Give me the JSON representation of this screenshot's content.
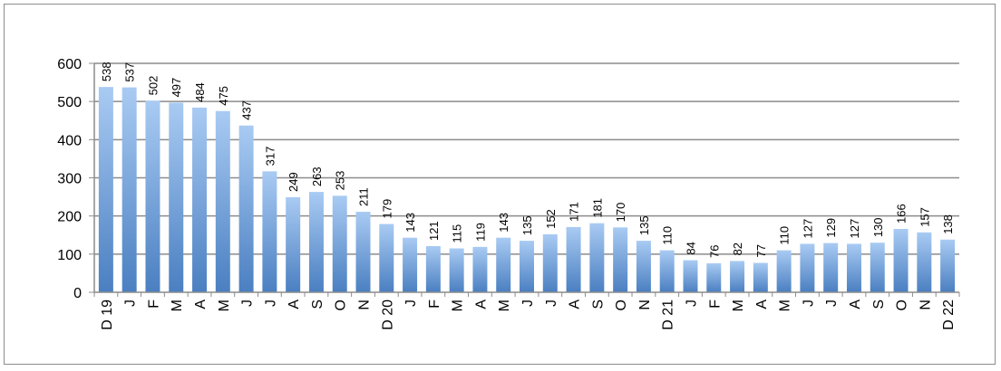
{
  "chart_data": {
    "type": "bar",
    "title": "",
    "xlabel": "",
    "ylabel": "",
    "ylim": [
      0,
      600
    ],
    "yticks": [
      "0",
      "100",
      "200",
      "300",
      "400",
      "500",
      "600"
    ],
    "grid": true,
    "categories": [
      "D 19",
      "J",
      "F",
      "M",
      "A",
      "M",
      "J",
      "J",
      "A",
      "S",
      "O",
      "N",
      "D 20",
      "J",
      "F",
      "M",
      "A",
      "M",
      "J",
      "J",
      "A",
      "S",
      "O",
      "N",
      "D 21",
      "J",
      "F",
      "M",
      "A",
      "M",
      "J",
      "J",
      "A",
      "S",
      "O",
      "N",
      "D 22"
    ],
    "values": [
      538,
      537,
      502,
      497,
      484,
      475,
      437,
      317,
      249,
      263,
      253,
      211,
      179,
      143,
      121,
      115,
      119,
      143,
      135,
      152,
      171,
      181,
      170,
      135,
      110,
      84,
      76,
      82,
      77,
      110,
      127,
      129,
      127,
      130,
      166,
      157,
      138
    ],
    "bar_color_top": "#a9cbf3",
    "bar_color_bottom": "#4a7fc1"
  }
}
